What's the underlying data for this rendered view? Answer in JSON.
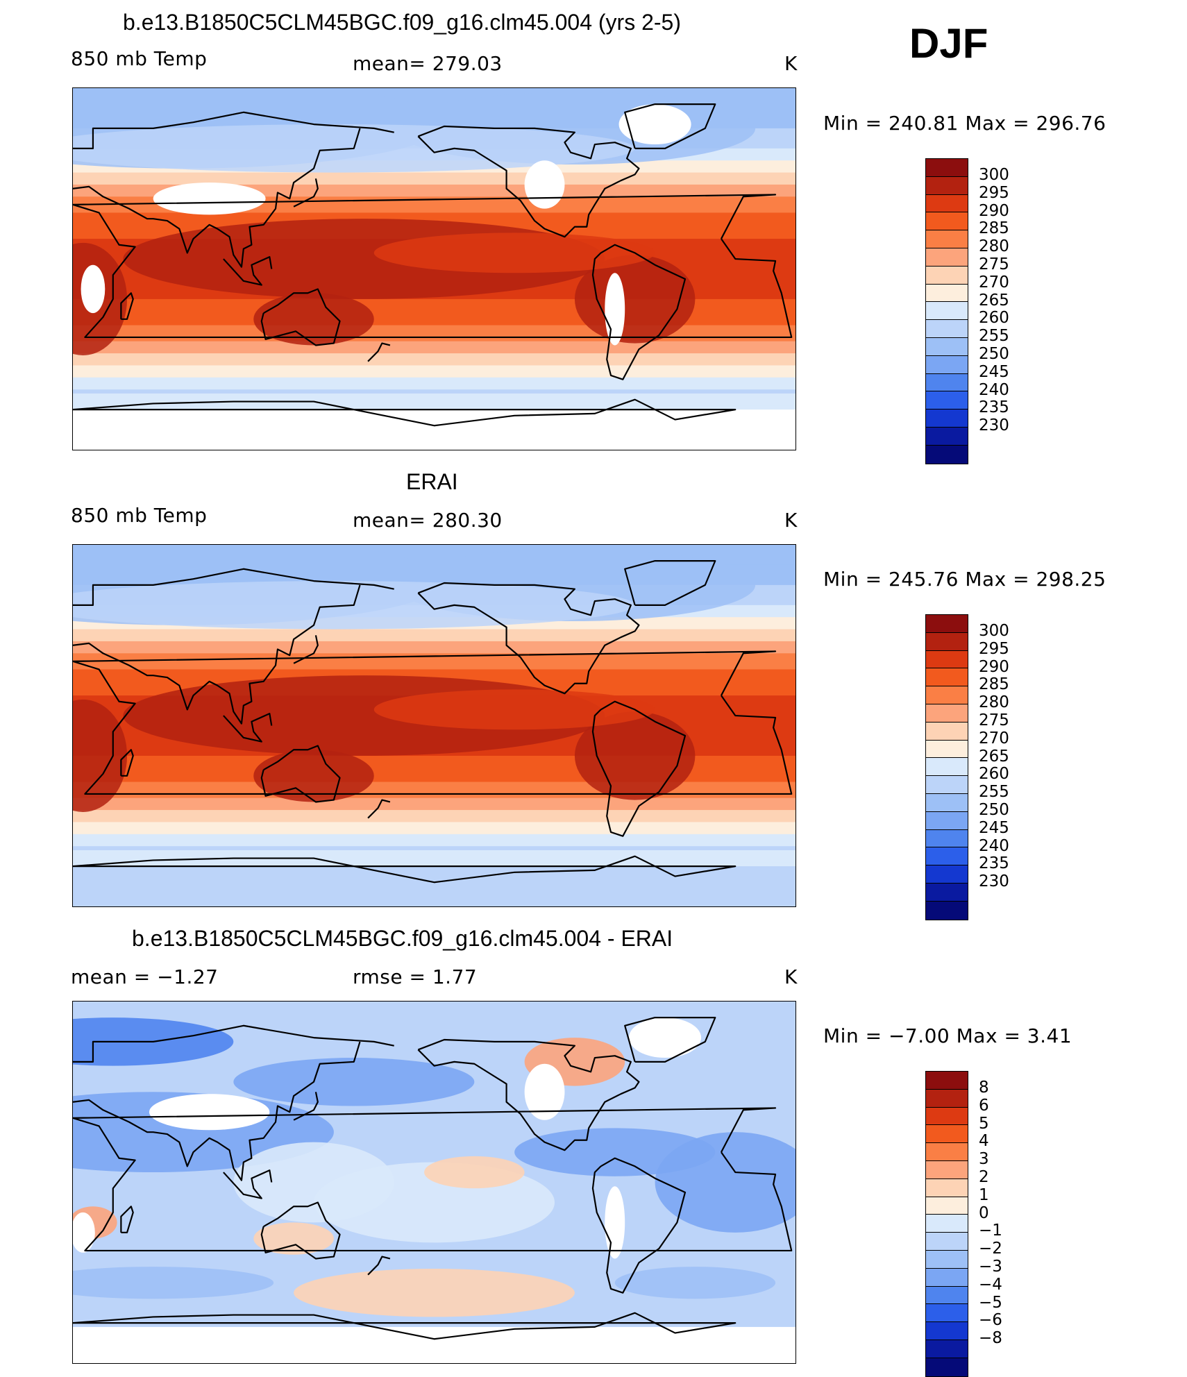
{
  "header": {
    "season": "DJF"
  },
  "panels": [
    {
      "title": "b.e13.B1850C5CLM45BGC.f09_g16.clm45.004 (yrs 2-5)",
      "left": "850 mb Temp",
      "center": "mean=  279.03",
      "right": "K",
      "minmax": "Min  =  240.81  Max  =  296.76",
      "palette": [
        "#8c0e0e",
        "#b32210",
        "#dd3a12",
        "#f25a1e",
        "#fa7f45",
        "#fca47c",
        "#fdd3b5",
        "#fdeedd",
        "#d9e9fb",
        "#bcd4f9",
        "#9dc0f6",
        "#7ba6f3",
        "#4f84ee",
        "#2c5fea",
        "#1438d0",
        "#0a1aa0",
        "#050a78"
      ],
      "ticks": [
        "300",
        "295",
        "290",
        "285",
        "280",
        "275",
        "270",
        "265",
        "260",
        "255",
        "250",
        "245",
        "240",
        "235",
        "230"
      ]
    },
    {
      "title": "ERAI",
      "left": "850 mb Temp",
      "center": "mean=  280.30",
      "right": "K",
      "minmax": "Min  =  245.76  Max  =  298.25",
      "palette": [
        "#8c0e0e",
        "#b32210",
        "#dd3a12",
        "#f25a1e",
        "#fa7f45",
        "#fca47c",
        "#fdd3b5",
        "#fdeedd",
        "#d9e9fb",
        "#bcd4f9",
        "#9dc0f6",
        "#7ba6f3",
        "#4f84ee",
        "#2c5fea",
        "#1438d0",
        "#0a1aa0",
        "#050a78"
      ],
      "ticks": [
        "300",
        "295",
        "290",
        "285",
        "280",
        "275",
        "270",
        "265",
        "260",
        "255",
        "250",
        "245",
        "240",
        "235",
        "230"
      ]
    },
    {
      "title": "b.e13.B1850C5CLM45BGC.f09_g16.clm45.004 - ERAI",
      "left": "mean  =    −1.27",
      "center": "rmse  =     1.77",
      "right": "K",
      "minmax": "Min  =    −7.00  Max  =      3.41",
      "palette": [
        "#8c0e0e",
        "#b32210",
        "#dd3a12",
        "#f25a1e",
        "#fa7f45",
        "#fca47c",
        "#fdd3b5",
        "#fdeedd",
        "#d9e9fb",
        "#bcd4f9",
        "#9dc0f6",
        "#7ba6f3",
        "#4f84ee",
        "#2c5fea",
        "#1438d0",
        "#0a1aa0",
        "#050a78"
      ],
      "ticks": [
        "8",
        "6",
        "5",
        "4",
        "3",
        "2",
        "1",
        "0",
        "−1",
        "−2",
        "−3",
        "−4",
        "−5",
        "−6",
        "−8"
      ]
    }
  ]
}
